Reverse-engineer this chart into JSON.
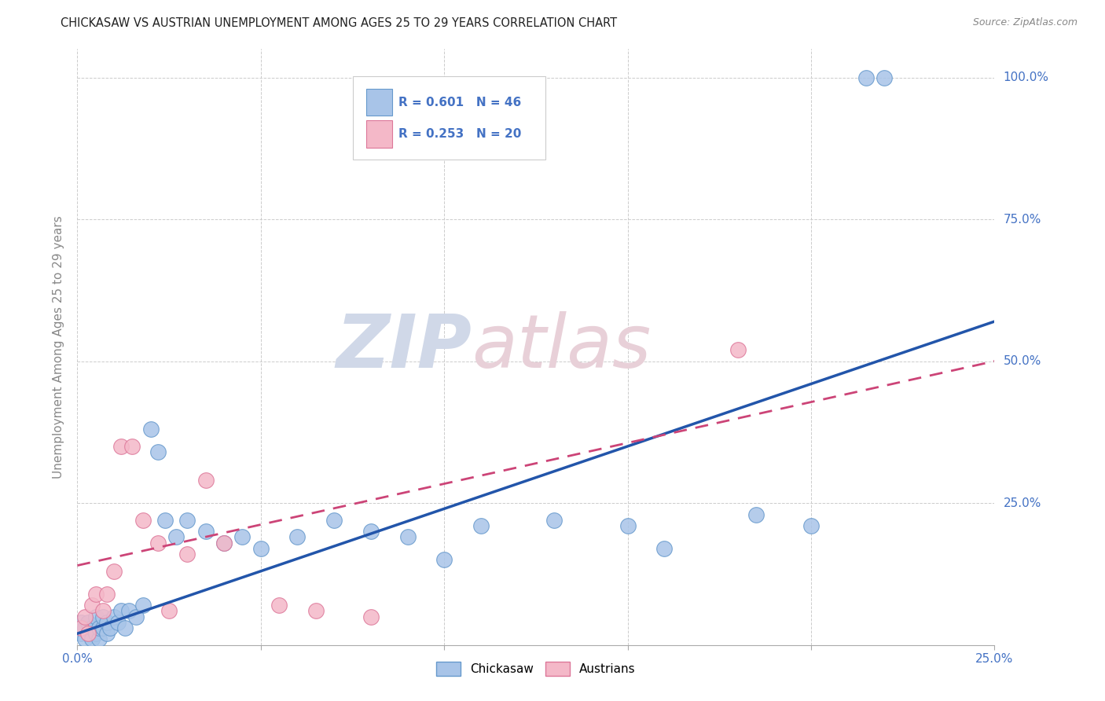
{
  "title": "CHICKASAW VS AUSTRIAN UNEMPLOYMENT AMONG AGES 25 TO 29 YEARS CORRELATION CHART",
  "source": "Source: ZipAtlas.com",
  "ylabel": "Unemployment Among Ages 25 to 29 years",
  "xlim": [
    0.0,
    0.25
  ],
  "ylim": [
    0.0,
    1.05
  ],
  "xticks": [
    0.0,
    0.05,
    0.1,
    0.15,
    0.2,
    0.25
  ],
  "yticks": [
    0.0,
    0.25,
    0.5,
    0.75,
    1.0
  ],
  "xtick_labels": [
    "0.0%",
    "",
    "",
    "",
    "",
    "25.0%"
  ],
  "ytick_labels": [
    "",
    "25.0%",
    "50.0%",
    "75.0%",
    "100.0%"
  ],
  "chickasaw_R": 0.601,
  "chickasaw_N": 46,
  "austrians_R": 0.253,
  "austrians_N": 20,
  "chickasaw_color": "#a8c4e8",
  "chickasaw_edge_color": "#6699cc",
  "chickasaw_line_color": "#2255aa",
  "austrians_color": "#f4b8c8",
  "austrians_edge_color": "#dd7799",
  "austrians_line_color": "#cc4477",
  "watermark_color": "#d0d8e8",
  "watermark_color2": "#e8d0d8",
  "background_color": "#ffffff",
  "grid_color": "#cccccc",
  "title_color": "#222222",
  "axis_tick_color": "#4472c4",
  "legend_text_color": "#4472c4",
  "source_color": "#888888",
  "ylabel_color": "#888888",
  "chickasaw_x": [
    0.001,
    0.001,
    0.002,
    0.002,
    0.003,
    0.003,
    0.004,
    0.004,
    0.005,
    0.005,
    0.006,
    0.006,
    0.007,
    0.007,
    0.008,
    0.008,
    0.009,
    0.01,
    0.011,
    0.012,
    0.013,
    0.014,
    0.016,
    0.018,
    0.02,
    0.022,
    0.024,
    0.027,
    0.03,
    0.035,
    0.04,
    0.045,
    0.05,
    0.06,
    0.07,
    0.08,
    0.09,
    0.1,
    0.11,
    0.13,
    0.15,
    0.16,
    0.185,
    0.2,
    0.215,
    0.22
  ],
  "chickasaw_y": [
    0.02,
    0.04,
    0.01,
    0.03,
    0.02,
    0.04,
    0.01,
    0.03,
    0.02,
    0.05,
    0.01,
    0.03,
    0.03,
    0.05,
    0.02,
    0.04,
    0.03,
    0.05,
    0.04,
    0.06,
    0.03,
    0.06,
    0.05,
    0.07,
    0.38,
    0.34,
    0.22,
    0.19,
    0.22,
    0.2,
    0.18,
    0.19,
    0.17,
    0.19,
    0.22,
    0.2,
    0.19,
    0.15,
    0.21,
    0.22,
    0.21,
    0.17,
    0.23,
    0.21,
    1.0,
    1.0
  ],
  "austrians_x": [
    0.001,
    0.002,
    0.003,
    0.004,
    0.005,
    0.007,
    0.008,
    0.01,
    0.012,
    0.015,
    0.018,
    0.022,
    0.025,
    0.03,
    0.035,
    0.04,
    0.055,
    0.065,
    0.08,
    0.18
  ],
  "austrians_y": [
    0.03,
    0.05,
    0.02,
    0.07,
    0.09,
    0.06,
    0.09,
    0.13,
    0.35,
    0.35,
    0.22,
    0.18,
    0.06,
    0.16,
    0.29,
    0.18,
    0.07,
    0.06,
    0.05,
    0.52
  ],
  "chick_line_x0": 0.0,
  "chick_line_y0": 0.02,
  "chick_line_x1": 0.25,
  "chick_line_y1": 0.57,
  "aust_line_x0": 0.0,
  "aust_line_y0": 0.14,
  "aust_line_x1": 0.25,
  "aust_line_y1": 0.5
}
